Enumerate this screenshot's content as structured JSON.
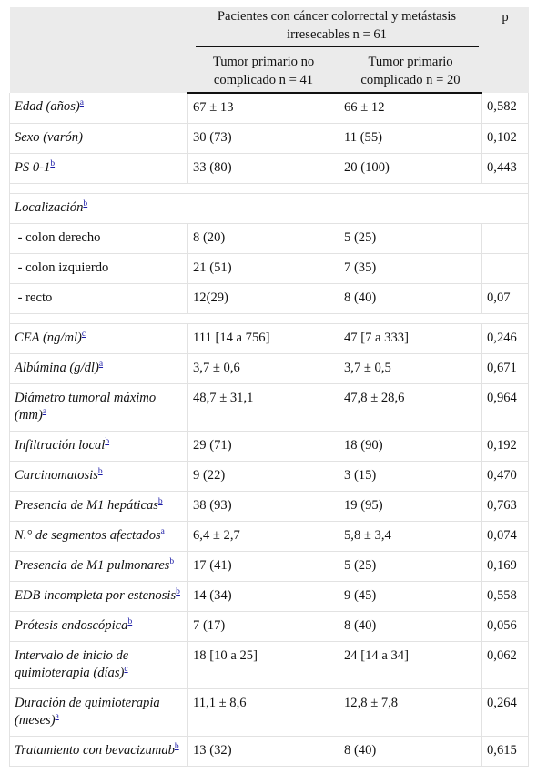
{
  "header": {
    "group": "Pacientes con cáncer colorrectal y metástasis irresecables n = 61",
    "p": "p",
    "col_a": "Tumor primario no complicado n = 41",
    "col_b": "Tumor primario complicado n = 20"
  },
  "rows": [
    {
      "label": "Edad (años)",
      "fn": "a",
      "a": "67 ± 13",
      "b": "66 ± 12",
      "p": "0,582",
      "italic": true
    },
    {
      "label": "Sexo (varón)",
      "fn": "",
      "a": "30 (73)",
      "b": "11 (55)",
      "p": "0,102",
      "italic": true
    },
    {
      "label": "PS 0-1",
      "fn": "b",
      "a": "33 (80)",
      "b": "20 (100)",
      "p": "0,443",
      "italic": true
    },
    {
      "spacer": true
    },
    {
      "label": "Localización",
      "fn": "b",
      "a": "",
      "b": "",
      "p": "",
      "italic": true,
      "span": true
    },
    {
      "label": " - colon derecho",
      "fn": "",
      "a": "8 (20)",
      "b": "5 (25)",
      "p": "",
      "italic": false
    },
    {
      "label": " - colon izquierdo",
      "fn": "",
      "a": "21 (51)",
      "b": "7 (35)",
      "p": "",
      "italic": false
    },
    {
      "label": " - recto",
      "fn": "",
      "a": "12(29)",
      "b": "8 (40)",
      "p": "0,07",
      "italic": false
    },
    {
      "spacer": true
    },
    {
      "label": "CEA (ng/ml)",
      "fn": "c",
      "a": "111 [14 a 756]",
      "b": "47 [7 a 333]",
      "p": "0,246",
      "italic": true
    },
    {
      "label": "Albúmina (g/dl)",
      "fn": "a",
      "a": "3,7 ± 0,6",
      "b": "3,7 ± 0,5",
      "p": "0,671",
      "italic": true
    },
    {
      "label": "Diámetro tumoral máximo (mm)",
      "fn": "a",
      "a": "48,7 ± 31,1",
      "b": "47,8 ± 28,6",
      "p": "0,964",
      "italic": true
    },
    {
      "label": "Infiltración local",
      "fn": "b",
      "a": "29 (71)",
      "b": "18 (90)",
      "p": "0,192",
      "italic": true
    },
    {
      "label": "Carcinomatosis",
      "fn": "b",
      "a": "9 (22)",
      "b": "3 (15)",
      "p": "0,470",
      "italic": true
    },
    {
      "label": "Presencia de M1 hepáticas",
      "fn": "b",
      "a": "38 (93)",
      "b": "19 (95)",
      "p": "0,763",
      "italic": true
    },
    {
      "label": "N.° de segmentos afectados",
      "fn": "a",
      "a": "6,4 ± 2,7",
      "b": "5,8 ± 3,4",
      "p": "0,074",
      "italic": true
    },
    {
      "label": "Presencia de M1 pulmonares",
      "fn": "b",
      "a": "17 (41)",
      "b": "5 (25)",
      "p": "0,169",
      "italic": true
    },
    {
      "label": "EDB incompleta por estenosis",
      "fn": "b",
      "a": "14 (34)",
      "b": "9 (45)",
      "p": "0,558",
      "italic": true
    },
    {
      "label": "Prótesis endoscópica",
      "fn": "b",
      "a": "7 (17)",
      "b": "8 (40)",
      "p": "0,056",
      "italic": true
    },
    {
      "label": "Intervalo de inicio de quimioterapia (días)",
      "fn": "c",
      "a": "18 [10 a 25]",
      "b": "24 [14 a 34]",
      "p": "0,062",
      "italic": true
    },
    {
      "label": "Duración de quimioterapia (meses)",
      "fn": "a",
      "a": "11,1 ± 8,6",
      "b": "12,8 ± 7,8",
      "p": "0,264",
      "italic": true
    },
    {
      "label": "Tratamiento con bevacizumab",
      "fn": "b",
      "a": "13 (32)",
      "b": "8 (40)",
      "p": "0,615",
      "italic": true
    }
  ]
}
